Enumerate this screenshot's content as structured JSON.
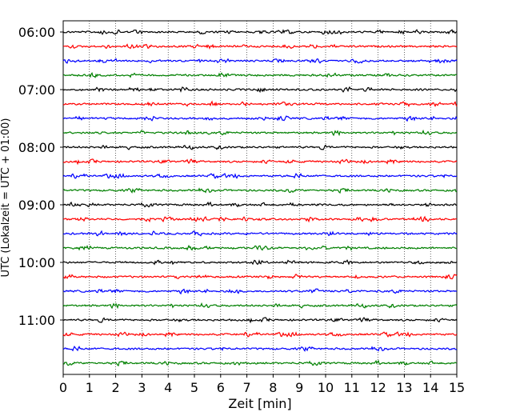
{
  "chart_data": {
    "type": "line",
    "title": "",
    "xlabel": "Zeit  [min]",
    "ylabel": "UTC (Lokalzeit = UTC + 01:00)",
    "xlim": [
      0,
      15
    ],
    "x_ticks": [
      "0",
      "1",
      "2",
      "3",
      "4",
      "5",
      "6",
      "7",
      "8",
      "9",
      "10",
      "11",
      "12",
      "13",
      "14",
      "15"
    ],
    "y_tick_labels": [
      "06:00",
      "07:00",
      "08:00",
      "09:00",
      "10:00",
      "11:00"
    ],
    "trace_interval_min": 15,
    "trace_start": "06:00",
    "trace_count": 24,
    "trace_colors": [
      "#000000",
      "#ff0000",
      "#0000ff",
      "#008000"
    ],
    "grid": "vertical dotted"
  }
}
